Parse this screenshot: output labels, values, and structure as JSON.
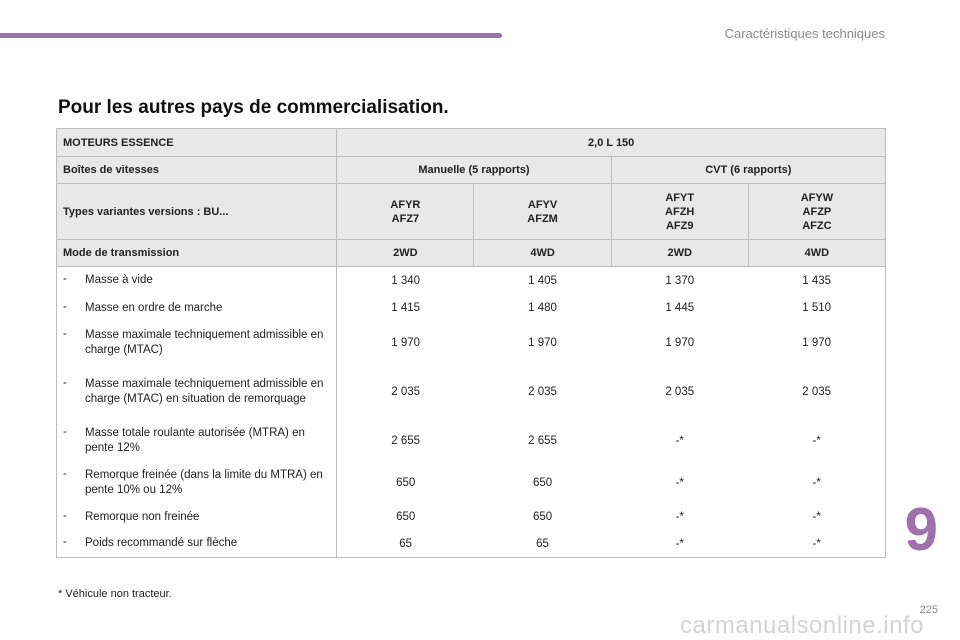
{
  "header": {
    "title": "Caractéristiques techniques",
    "accent": "#a06fae"
  },
  "heading": "Pour les autres pays de commercialisation.",
  "table": {
    "engine_label": "MOTEURS ESSENCE",
    "engine_value": "2,0 L 150",
    "gearbox_label": "Boîtes de vitesses",
    "gearboxes": [
      "Manuelle (5 rapports)",
      "CVT (6 rapports)"
    ],
    "types_label": "Types variantes versions : BU...",
    "types": [
      [
        "AFYR",
        "AFZ7"
      ],
      [
        "AFYV",
        "AFZM"
      ],
      [
        "AFYT",
        "AFZH",
        "AFZ9"
      ],
      [
        "AFYW",
        "AFZP",
        "AFZC"
      ]
    ],
    "transmission_label": "Mode de transmission",
    "transmissions": [
      "2WD",
      "4WD",
      "2WD",
      "4WD"
    ],
    "rows": [
      {
        "dash": "-",
        "label": "Masse à vide",
        "values": [
          "1 340",
          "1 405",
          "1 370",
          "1 435"
        ]
      },
      {
        "dash": "-",
        "label": "Masse en ordre de marche",
        "values": [
          "1 415",
          "1 480",
          "1 445",
          "1 510"
        ]
      },
      {
        "dash": "-",
        "label": "Masse maximale techniquement admissible en charge (MTAC)",
        "values": [
          "1 970",
          "1 970",
          "1 970",
          "1 970"
        ]
      },
      {
        "dash": "-",
        "label": "Masse maximale techniquement admissible en charge (MTAC) en situation de remorquage",
        "values": [
          "2 035",
          "2 035",
          "2 035",
          "2 035"
        ]
      },
      {
        "dash": "-",
        "label": "Masse totale roulante autorisée (MTRA) en pente 12%",
        "values": [
          "2 655",
          "2 655",
          "-*",
          "-*"
        ]
      },
      {
        "dash": "-",
        "label": "Remorque freinée (dans la limite du MTRA) en pente 10% ou 12%",
        "values": [
          "650",
          "650",
          "-*",
          "-*"
        ]
      },
      {
        "dash": "-",
        "label": "Remorque non freinée",
        "values": [
          "650",
          "650",
          "-*",
          "-*"
        ]
      },
      {
        "dash": "-",
        "label": "Poids recommandé sur flèche",
        "values": [
          "65",
          "65",
          "-*",
          "-*"
        ]
      }
    ]
  },
  "footnote": "* Véhicule non tracteur.",
  "chapter_number": "9",
  "page_number": "225",
  "watermark": "carmanualsonline.info"
}
